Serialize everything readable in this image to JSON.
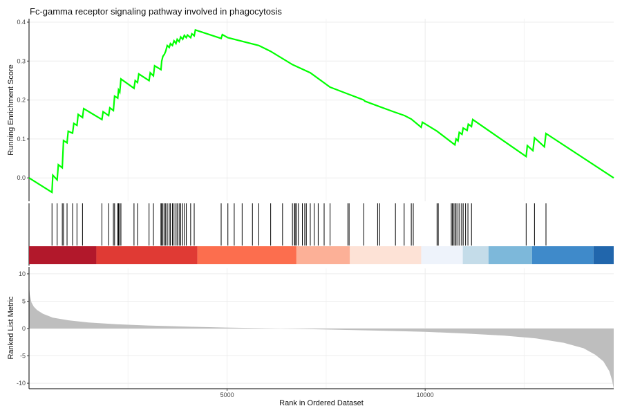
{
  "chart_data": {
    "type": "line",
    "title": "Fc-gamma receptor signaling pathway involved in phagocytosis",
    "xlabel": "Rank in Ordered Dataset",
    "x_ticks": [
      5000,
      10000
    ],
    "x_range": [
      0,
      14760
    ],
    "running_es": {
      "ylabel": "Running Enrichment Score",
      "ylim": [
        -0.06,
        0.4
      ],
      "y_ticks": [
        0.0,
        0.1,
        0.2,
        0.3,
        0.4
      ],
      "tick_labels": [
        "0.0",
        "0.1",
        "0.2",
        "0.3",
        "0.4"
      ],
      "line_color": "#00FF00",
      "points": [
        [
          0,
          0.0
        ],
        [
          580,
          -0.037
        ],
        [
          600,
          0.007
        ],
        [
          710,
          -0.005
        ],
        [
          740,
          0.034
        ],
        [
          840,
          0.026
        ],
        [
          870,
          0.096
        ],
        [
          960,
          0.09
        ],
        [
          990,
          0.12
        ],
        [
          1100,
          0.115
        ],
        [
          1130,
          0.14
        ],
        [
          1210,
          0.135
        ],
        [
          1240,
          0.163
        ],
        [
          1350,
          0.155
        ],
        [
          1380,
          0.178
        ],
        [
          1840,
          0.15
        ],
        [
          1870,
          0.17
        ],
        [
          2010,
          0.16
        ],
        [
          2040,
          0.18
        ],
        [
          2130,
          0.173
        ],
        [
          2160,
          0.21
        ],
        [
          2240,
          0.205
        ],
        [
          2260,
          0.226
        ],
        [
          2290,
          0.22
        ],
        [
          2320,
          0.254
        ],
        [
          2650,
          0.23
        ],
        [
          2680,
          0.25
        ],
        [
          2740,
          0.245
        ],
        [
          2770,
          0.267
        ],
        [
          3030,
          0.25
        ],
        [
          3060,
          0.27
        ],
        [
          3140,
          0.262
        ],
        [
          3170,
          0.288
        ],
        [
          3330,
          0.278
        ],
        [
          3350,
          0.3
        ],
        [
          3380,
          0.312
        ],
        [
          3420,
          0.318
        ],
        [
          3450,
          0.325
        ],
        [
          3490,
          0.34
        ],
        [
          3540,
          0.335
        ],
        [
          3570,
          0.345
        ],
        [
          3620,
          0.34
        ],
        [
          3660,
          0.352
        ],
        [
          3710,
          0.345
        ],
        [
          3740,
          0.356
        ],
        [
          3790,
          0.35
        ],
        [
          3830,
          0.362
        ],
        [
          3880,
          0.356
        ],
        [
          3920,
          0.366
        ],
        [
          3970,
          0.36
        ],
        [
          4000,
          0.367
        ],
        [
          4080,
          0.36
        ],
        [
          4110,
          0.37
        ],
        [
          4170,
          0.365
        ],
        [
          4200,
          0.38
        ],
        [
          4850,
          0.358
        ],
        [
          4880,
          0.368
        ],
        [
          5020,
          0.36
        ],
        [
          5800,
          0.34
        ],
        [
          6100,
          0.325
        ],
        [
          6650,
          0.291
        ],
        [
          7100,
          0.27
        ],
        [
          7600,
          0.233
        ],
        [
          8450,
          0.2
        ],
        [
          8480,
          0.197
        ],
        [
          8850,
          0.183
        ],
        [
          9200,
          0.17
        ],
        [
          9480,
          0.16
        ],
        [
          9650,
          0.151
        ],
        [
          9900,
          0.13
        ],
        [
          9930,
          0.143
        ],
        [
          10300,
          0.12
        ],
        [
          10750,
          0.085
        ],
        [
          10780,
          0.1
        ],
        [
          10830,
          0.095
        ],
        [
          10860,
          0.117
        ],
        [
          10930,
          0.112
        ],
        [
          10960,
          0.128
        ],
        [
          11060,
          0.122
        ],
        [
          11090,
          0.138
        ],
        [
          11170,
          0.132
        ],
        [
          11200,
          0.15
        ],
        [
          12550,
          0.055
        ],
        [
          12580,
          0.083
        ],
        [
          12720,
          0.07
        ],
        [
          12760,
          0.103
        ],
        [
          13010,
          0.08
        ],
        [
          13050,
          0.114
        ],
        [
          14760,
          0.0
        ]
      ]
    },
    "hits": [
      580,
      710,
      840,
      870,
      960,
      1100,
      1210,
      1350,
      1840,
      2010,
      2130,
      2160,
      2240,
      2260,
      2290,
      2320,
      2650,
      2740,
      3030,
      3140,
      3330,
      3350,
      3380,
      3420,
      3450,
      3490,
      3540,
      3570,
      3620,
      3660,
      3710,
      3740,
      3790,
      3830,
      3880,
      3920,
      3970,
      4080,
      4170,
      4850,
      5020,
      5180,
      5380,
      5640,
      5800,
      6100,
      6400,
      6650,
      6700,
      6720,
      6760,
      6800,
      6900,
      6960,
      7000,
      7100,
      7200,
      7300,
      7450,
      7600,
      8050,
      8080,
      8450,
      8800,
      8850,
      9250,
      9470,
      9650,
      9700,
      10300,
      10330,
      10660,
      10690,
      10710,
      10750,
      10780,
      10830,
      10870,
      10920,
      10960,
      11020,
      11080,
      11170,
      12550,
      12760,
      13050
    ],
    "ranked_metric": {
      "ylabel": "Ranked List Metric",
      "ylim": [
        -11,
        11
      ],
      "y_ticks": [
        10,
        5,
        0,
        -5,
        -10
      ],
      "tick_labels": [
        "10",
        "5",
        "0",
        "-5",
        "-10"
      ],
      "fill_color": "#BEBEBE",
      "points": [
        [
          0,
          8.0
        ],
        [
          20,
          6.2
        ],
        [
          60,
          4.8
        ],
        [
          120,
          4.0
        ],
        [
          200,
          3.4
        ],
        [
          350,
          2.7
        ],
        [
          600,
          2.0
        ],
        [
          1000,
          1.5
        ],
        [
          1500,
          1.1
        ],
        [
          2200,
          0.8
        ],
        [
          3000,
          0.55
        ],
        [
          4000,
          0.35
        ],
        [
          5000,
          0.18
        ],
        [
          6000,
          0.05
        ],
        [
          7000,
          -0.1
        ],
        [
          8000,
          -0.25
        ],
        [
          9000,
          -0.4
        ],
        [
          10000,
          -0.6
        ],
        [
          11000,
          -0.9
        ],
        [
          12000,
          -1.3
        ],
        [
          12800,
          -1.8
        ],
        [
          13500,
          -2.6
        ],
        [
          14000,
          -3.6
        ],
        [
          14300,
          -4.8
        ],
        [
          14500,
          -6.0
        ],
        [
          14650,
          -7.8
        ],
        [
          14720,
          -9.5
        ],
        [
          14760,
          -11.0
        ]
      ]
    },
    "color_bands": [
      {
        "from": 0,
        "to": 1700,
        "color": "#B2182B"
      },
      {
        "from": 1700,
        "to": 4250,
        "color": "#E03A34"
      },
      {
        "from": 4250,
        "to": 6750,
        "color": "#FC6E4E"
      },
      {
        "from": 6750,
        "to": 8100,
        "color": "#FCB097"
      },
      {
        "from": 8100,
        "to": 9900,
        "color": "#FDE2D6"
      },
      {
        "from": 9900,
        "to": 11600,
        "color": "#EEF3FB"
      },
      {
        "from": 10950,
        "to": 11600,
        "color": "#C4DCE9"
      },
      {
        "from": 11600,
        "to": 12700,
        "color": "#7DB8DA"
      },
      {
        "from": 12700,
        "to": 14250,
        "color": "#3F8ACA"
      },
      {
        "from": 14250,
        "to": 14760,
        "color": "#2166AC"
      }
    ]
  }
}
